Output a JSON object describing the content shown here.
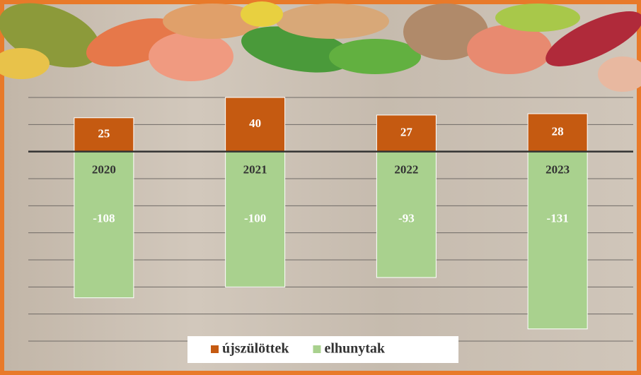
{
  "chart_data": {
    "type": "bar",
    "categories": [
      "2020",
      "2021",
      "2022",
      "2023"
    ],
    "series": [
      {
        "name": "újszülöttek",
        "color": "#c55a11",
        "values": [
          25,
          40,
          27,
          28
        ]
      },
      {
        "name": "elhunytak",
        "color": "#a9d18e",
        "values": [
          -108,
          -100,
          -93,
          -131
        ]
      }
    ],
    "ylim": [
      -140,
      40
    ],
    "yticks": [
      -140,
      -120,
      -100,
      -80,
      -60,
      -40,
      -20,
      0,
      20,
      40
    ],
    "grid": true
  }
}
